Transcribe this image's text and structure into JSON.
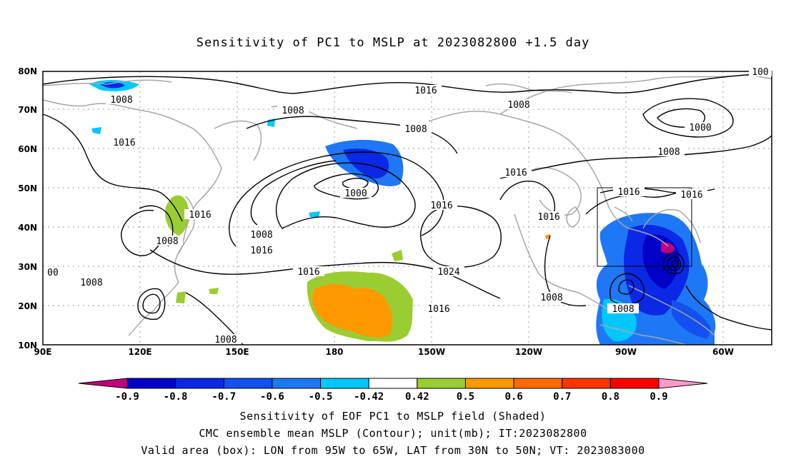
{
  "title": "Sensitivity of PC1 to MSLP at 2023082800 +1.5 day",
  "lat_labels": [
    "80N",
    "70N",
    "60N",
    "50N",
    "40N",
    "30N",
    "20N",
    "10N"
  ],
  "lon_labels": [
    "90E",
    "120E",
    "150E",
    "180",
    "150W",
    "120W",
    "90W",
    "60W"
  ],
  "contour_labels": [
    "1008",
    "1016",
    "1008",
    "1016",
    "1008",
    "1000",
    "1008",
    "1016",
    "1016",
    "1016",
    "1008",
    "1016",
    "1000",
    "1008",
    "1016",
    "1024",
    "1016",
    "1016",
    "1008",
    "1008",
    "1016",
    "1016",
    "1008",
    "1008",
    "1008",
    "00",
    "100"
  ],
  "colorbar": {
    "labels": [
      "-0.9",
      "-0.8",
      "-0.7",
      "-0.6",
      "-0.5",
      "-0.42",
      "0.42",
      "0.5",
      "0.6",
      "0.7",
      "0.8",
      "0.9"
    ],
    "colors": [
      "#c0007f",
      "#0000c8",
      "#0a28e6",
      "#1450f0",
      "#1e78f5",
      "#00c8ff",
      "#ffffff",
      "#9acd32",
      "#ff9900",
      "#ff6a00",
      "#ff3300",
      "#ff0000",
      "#ff99cc"
    ]
  },
  "caption": {
    "line1": "Sensitivity of EOF PC1 to MSLP field (Shaded)",
    "line2": "CMC ensemble mean MSLP (Contour); unit(mb); IT:2023082800",
    "line3": "Valid area (box): LON from 95W to 65W, LAT from 30N to 50N; VT: 2023083000"
  }
}
